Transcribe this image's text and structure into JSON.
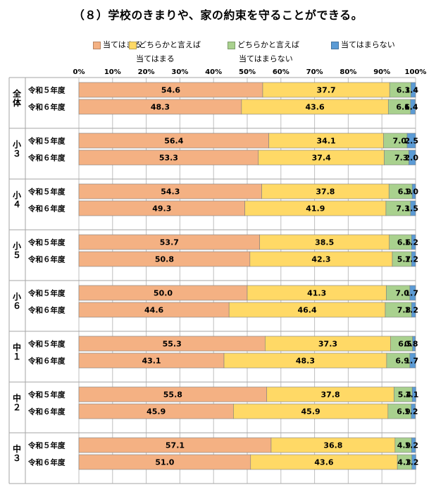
{
  "chart_data": {
    "type": "bar",
    "orientation": "horizontal",
    "stacked": "percent",
    "title": "（８）学校のきまりや、家の約束を守ることができる。",
    "legend_position": "top",
    "xlim": [
      0,
      100
    ],
    "x_ticks": [
      "0%",
      "10%",
      "20%",
      "30%",
      "40%",
      "50%",
      "60%",
      "70%",
      "80%",
      "90%",
      "100%"
    ],
    "grid": true,
    "series": [
      {
        "name": "当てはまる",
        "color": "#F4B183",
        "lines": [
          "当てはまる"
        ]
      },
      {
        "name": "どちらかと言えば当てはまる",
        "color": "#FFD966",
        "lines": [
          "どちらかと言えば",
          "当てはまる"
        ]
      },
      {
        "name": "どちらかと言えば当てはまらない",
        "color": "#A9D18E",
        "lines": [
          "どちらかと言えば",
          "当てはまらない"
        ]
      },
      {
        "name": "当てはまらない",
        "color": "#5B9BD5",
        "lines": [
          "当てはまらない"
        ]
      }
    ],
    "groups": [
      {
        "label": "全体",
        "rows": [
          {
            "label": "令和５年度",
            "values": [
              54.6,
              37.7,
              6.3,
              1.4
            ]
          },
          {
            "label": "令和６年度",
            "values": [
              48.3,
              43.6,
              6.6,
              1.4
            ]
          }
        ]
      },
      {
        "label": "小３",
        "rows": [
          {
            "label": "令和５年度",
            "values": [
              56.4,
              34.1,
              7.0,
              2.5
            ]
          },
          {
            "label": "令和６年度",
            "values": [
              53.3,
              37.4,
              7.3,
              2.0
            ]
          }
        ]
      },
      {
        "label": "小４",
        "rows": [
          {
            "label": "令和５年度",
            "values": [
              54.3,
              37.8,
              6.9,
              1.0
            ]
          },
          {
            "label": "令和６年度",
            "values": [
              49.3,
              41.9,
              7.3,
              1.5
            ]
          }
        ]
      },
      {
        "label": "小５",
        "rows": [
          {
            "label": "令和５年度",
            "values": [
              53.7,
              38.5,
              6.6,
              1.2
            ]
          },
          {
            "label": "令和６年度",
            "values": [
              50.8,
              42.3,
              5.7,
              1.2
            ]
          }
        ]
      },
      {
        "label": "小６",
        "rows": [
          {
            "label": "令和５年度",
            "values": [
              50.0,
              41.3,
              7.0,
              1.7
            ]
          },
          {
            "label": "令和６年度",
            "values": [
              44.6,
              46.4,
              7.8,
              1.2
            ]
          }
        ]
      },
      {
        "label": "中１",
        "rows": [
          {
            "label": "令和５年度",
            "values": [
              55.3,
              37.3,
              6.5,
              0.8
            ]
          },
          {
            "label": "令和６年度",
            "values": [
              43.1,
              48.3,
              6.9,
              1.7
            ]
          }
        ]
      },
      {
        "label": "中２",
        "rows": [
          {
            "label": "令和５年度",
            "values": [
              55.8,
              37.8,
              5.4,
              1.1
            ]
          },
          {
            "label": "令和６年度",
            "values": [
              45.9,
              45.9,
              6.9,
              1.2
            ]
          }
        ]
      },
      {
        "label": "中３",
        "rows": [
          {
            "label": "令和５年度",
            "values": [
              57.1,
              36.8,
              4.9,
              1.2
            ]
          },
          {
            "label": "令和６年度",
            "values": [
              51.0,
              43.6,
              4.3,
              1.2
            ]
          }
        ]
      }
    ]
  }
}
